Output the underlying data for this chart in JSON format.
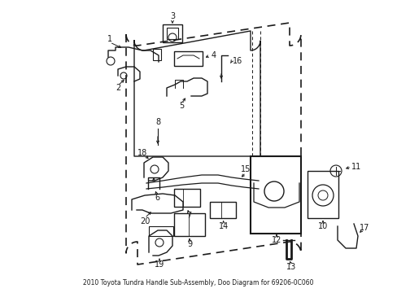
{
  "title": "2010 Toyota Tundra Handle Sub-Assembly, Doo Diagram for 69206-0C060",
  "bg_color": "#ffffff",
  "line_color": "#1a1a1a",
  "fig_width": 4.89,
  "fig_height": 3.6,
  "dpi": 100
}
